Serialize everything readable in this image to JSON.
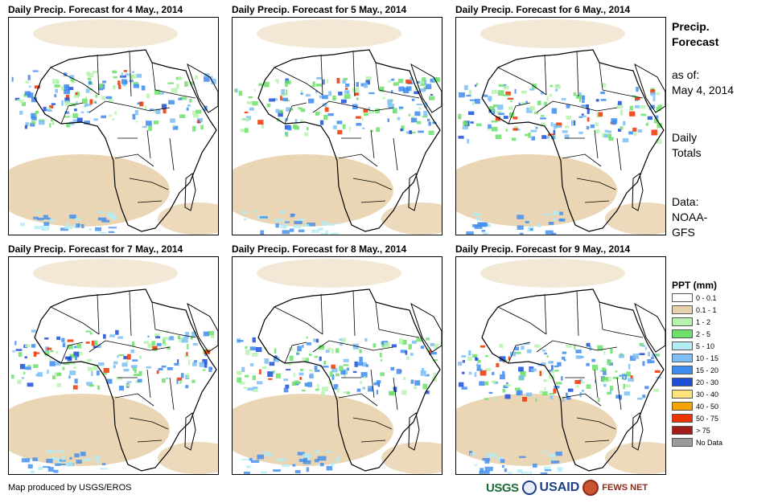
{
  "panels": [
    {
      "title": "Daily Precip. Forecast for 4 May., 2014"
    },
    {
      "title": "Daily Precip. Forecast for 5 May., 2014"
    },
    {
      "title": "Daily Precip. Forecast for 6 May., 2014"
    },
    {
      "title": "Daily Precip. Forecast for 7 May., 2014"
    },
    {
      "title": "Daily Precip. Forecast for 8 May., 2014"
    },
    {
      "title": "Daily Precip. Forecast for 9 May., 2014"
    }
  ],
  "side": {
    "title_line1": "Precip.",
    "title_line2": "Forecast",
    "asof_line1": "as of:",
    "asof_line2": "May 4, 2014",
    "daily_line1": "Daily",
    "daily_line2": "Totals",
    "data_line1": "Data:",
    "data_line2": "NOAA-",
    "data_line3": "GFS"
  },
  "legend": {
    "title": "PPT (mm)",
    "items": [
      {
        "label": "0 - 0.1",
        "color": "#ffffff"
      },
      {
        "label": "0.1 - 1",
        "color": "#e8d1ad"
      },
      {
        "label": "1 - 2",
        "color": "#b9f2b0"
      },
      {
        "label": "2 - 5",
        "color": "#6de06b"
      },
      {
        "label": "5 - 10",
        "color": "#b3ecf5"
      },
      {
        "label": "10 - 15",
        "color": "#7ec0f5"
      },
      {
        "label": "15 - 20",
        "color": "#3d8bef"
      },
      {
        "label": "20 - 30",
        "color": "#1c4fd6"
      },
      {
        "label": "30 - 40",
        "color": "#ffe27a"
      },
      {
        "label": "40 - 50",
        "color": "#f5a300"
      },
      {
        "label": "50 - 75",
        "color": "#ee3300"
      },
      {
        "label": "> 75",
        "color": "#a31a1a"
      },
      {
        "label": "No Data",
        "color": "#999999"
      }
    ]
  },
  "footer": {
    "credit": "Map produced by USGS/EROS"
  },
  "logos": {
    "usgs": "USGS",
    "usaid": "USAID",
    "fews": "FEWS NET"
  }
}
